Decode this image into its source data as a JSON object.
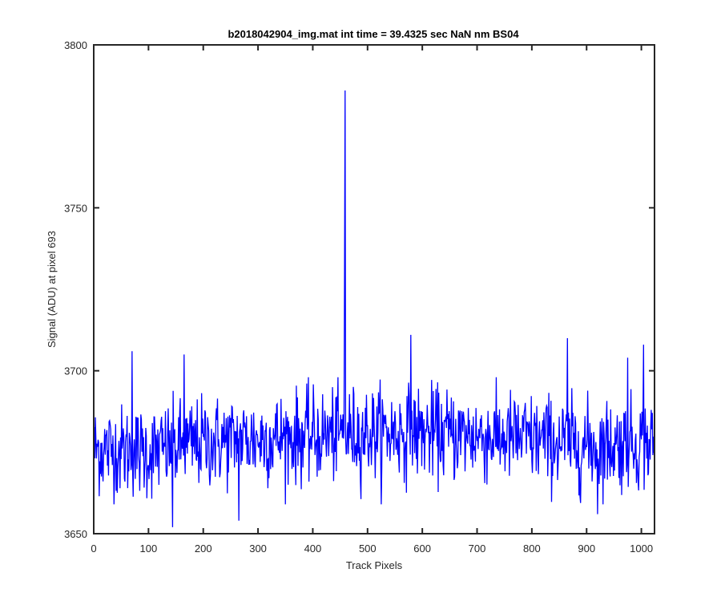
{
  "chart_data": {
    "type": "line",
    "title": "b2018042904_img.mat int time = 39.4325 sec  NaN nm BS04",
    "xlabel": "Track Pixels",
    "ylabel": "Signal (ADU) at pixel 693",
    "xlim": [
      0,
      1024
    ],
    "ylim": [
      3650,
      3800
    ],
    "xticks": [
      0,
      100,
      200,
      300,
      400,
      500,
      600,
      700,
      800,
      900,
      1000
    ],
    "yticks": [
      3650,
      3700,
      3750,
      3800
    ],
    "grid": false,
    "legend": "none",
    "series": [
      {
        "color": "#0000ff",
        "samples": 1024,
        "baseline": [
          [
            0,
            3676
          ],
          [
            100,
            3675
          ],
          [
            200,
            3678
          ],
          [
            300,
            3679
          ],
          [
            400,
            3680
          ],
          [
            500,
            3681
          ],
          [
            600,
            3681
          ],
          [
            700,
            3680
          ],
          [
            800,
            3679
          ],
          [
            900,
            3677
          ],
          [
            1024,
            3678
          ]
        ],
        "noise_amplitude": 7,
        "spikes": [
          {
            "x": 459,
            "y": 3786
          },
          {
            "x": 458,
            "y": 3730
          },
          {
            "x": 579,
            "y": 3711
          },
          {
            "x": 70,
            "y": 3706
          },
          {
            "x": 165,
            "y": 3705
          },
          {
            "x": 1004,
            "y": 3708
          },
          {
            "x": 865,
            "y": 3710
          },
          {
            "x": 975,
            "y": 3704
          },
          {
            "x": 144,
            "y": 3652
          },
          {
            "x": 265,
            "y": 3654
          },
          {
            "x": 920,
            "y": 3656
          }
        ]
      }
    ]
  },
  "colors": {
    "line": "#0000ff",
    "axes": "#262626",
    "background": "#ffffff"
  }
}
